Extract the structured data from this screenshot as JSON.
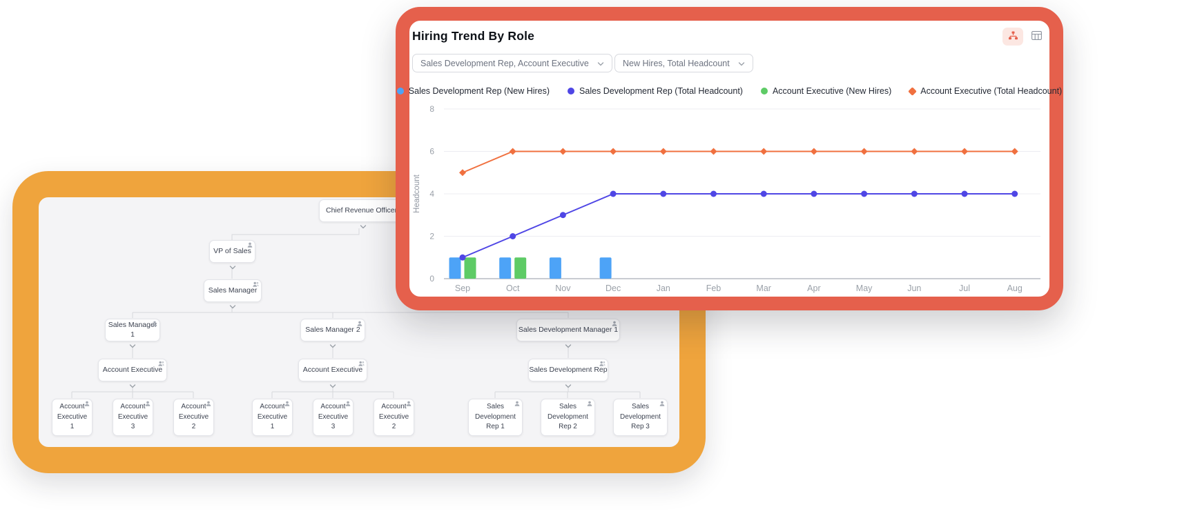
{
  "front_card": {
    "title": "Hiring Trend By Role",
    "view_toggle": {
      "active": "org-chart-view"
    },
    "filters": {
      "roles": {
        "value": "Sales Development Rep, Account Executive"
      },
      "metrics": {
        "value": "New Hires, Total Headcount"
      }
    },
    "legend": [
      {
        "label": "Sales Development Rep (New Hires)",
        "color": "#4da3f7",
        "marker": "circle"
      },
      {
        "label": "Sales Development Rep (Total Headcount)",
        "color": "#4f46e5",
        "marker": "circle"
      },
      {
        "label": "Account Executive (New Hires)",
        "color": "#5ecb66",
        "marker": "circle"
      },
      {
        "label": "Account Executive (Total Headcount)",
        "color": "#f0703f",
        "marker": "diamond"
      }
    ],
    "chart_data": {
      "type": "combo",
      "categories": [
        "Sep",
        "Oct",
        "Nov",
        "Dec",
        "Jan",
        "Feb",
        "Mar",
        "Apr",
        "May",
        "Jun",
        "Jul",
        "Aug"
      ],
      "series": [
        {
          "name": "Sales Development Rep (New Hires)",
          "type": "bar",
          "color": "#4da3f7",
          "values": [
            1,
            1,
            1,
            1,
            0,
            0,
            0,
            0,
            0,
            0,
            0,
            0
          ]
        },
        {
          "name": "Account Executive (New Hires)",
          "type": "bar",
          "color": "#5ecb66",
          "values": [
            1,
            1,
            0,
            0,
            0,
            0,
            0,
            0,
            0,
            0,
            0,
            0
          ]
        },
        {
          "name": "Sales Development Rep (Total Headcount)",
          "type": "line",
          "marker": "circle",
          "color": "#4f46e5",
          "values": [
            1,
            2,
            3,
            4,
            4,
            4,
            4,
            4,
            4,
            4,
            4,
            4
          ]
        },
        {
          "name": "Account Executive (Total Headcount)",
          "type": "line",
          "marker": "diamond",
          "color": "#f0703f",
          "values": [
            5,
            6,
            6,
            6,
            6,
            6,
            6,
            6,
            6,
            6,
            6,
            6
          ]
        }
      ],
      "title": "Hiring Trend By Role",
      "xlabel": "",
      "ylabel": "Headcount",
      "ylim": [
        0,
        8
      ],
      "yticks": [
        0,
        2,
        4,
        6,
        8
      ],
      "grid": true,
      "legend_position": "top"
    }
  },
  "org_chart": {
    "root": {
      "label": "Chief Revenue Officer"
    },
    "vp": {
      "label": "VP of Sales"
    },
    "manager": {
      "label": "Sales Manager"
    },
    "managers": [
      {
        "label": "Sales Manager 1"
      },
      {
        "label": "Sales Manager 2"
      },
      {
        "label": "Sales Development Manager 1"
      }
    ],
    "groups": [
      {
        "label": "Account Executive"
      },
      {
        "label": "Account Executive"
      },
      {
        "label": "Sales Development Rep"
      }
    ],
    "leaves": [
      {
        "label": "Account Executive 1"
      },
      {
        "label": "Account Executive 3"
      },
      {
        "label": "Account Executive 2"
      },
      {
        "label": "Account Executive 1"
      },
      {
        "label": "Account Executive 3"
      },
      {
        "label": "Account Executive 2"
      },
      {
        "label": "Sales Development Rep 1"
      },
      {
        "label": "Sales Development Rep 2"
      },
      {
        "label": "Sales Development Rep 3"
      }
    ]
  },
  "colors": {
    "front_card_border": "#e5604c",
    "back_card_border": "#efa43d",
    "active_toggle_bg": "#fce7e2",
    "grid_line": "#ececf1",
    "axis_text": "#9aa0a8"
  }
}
